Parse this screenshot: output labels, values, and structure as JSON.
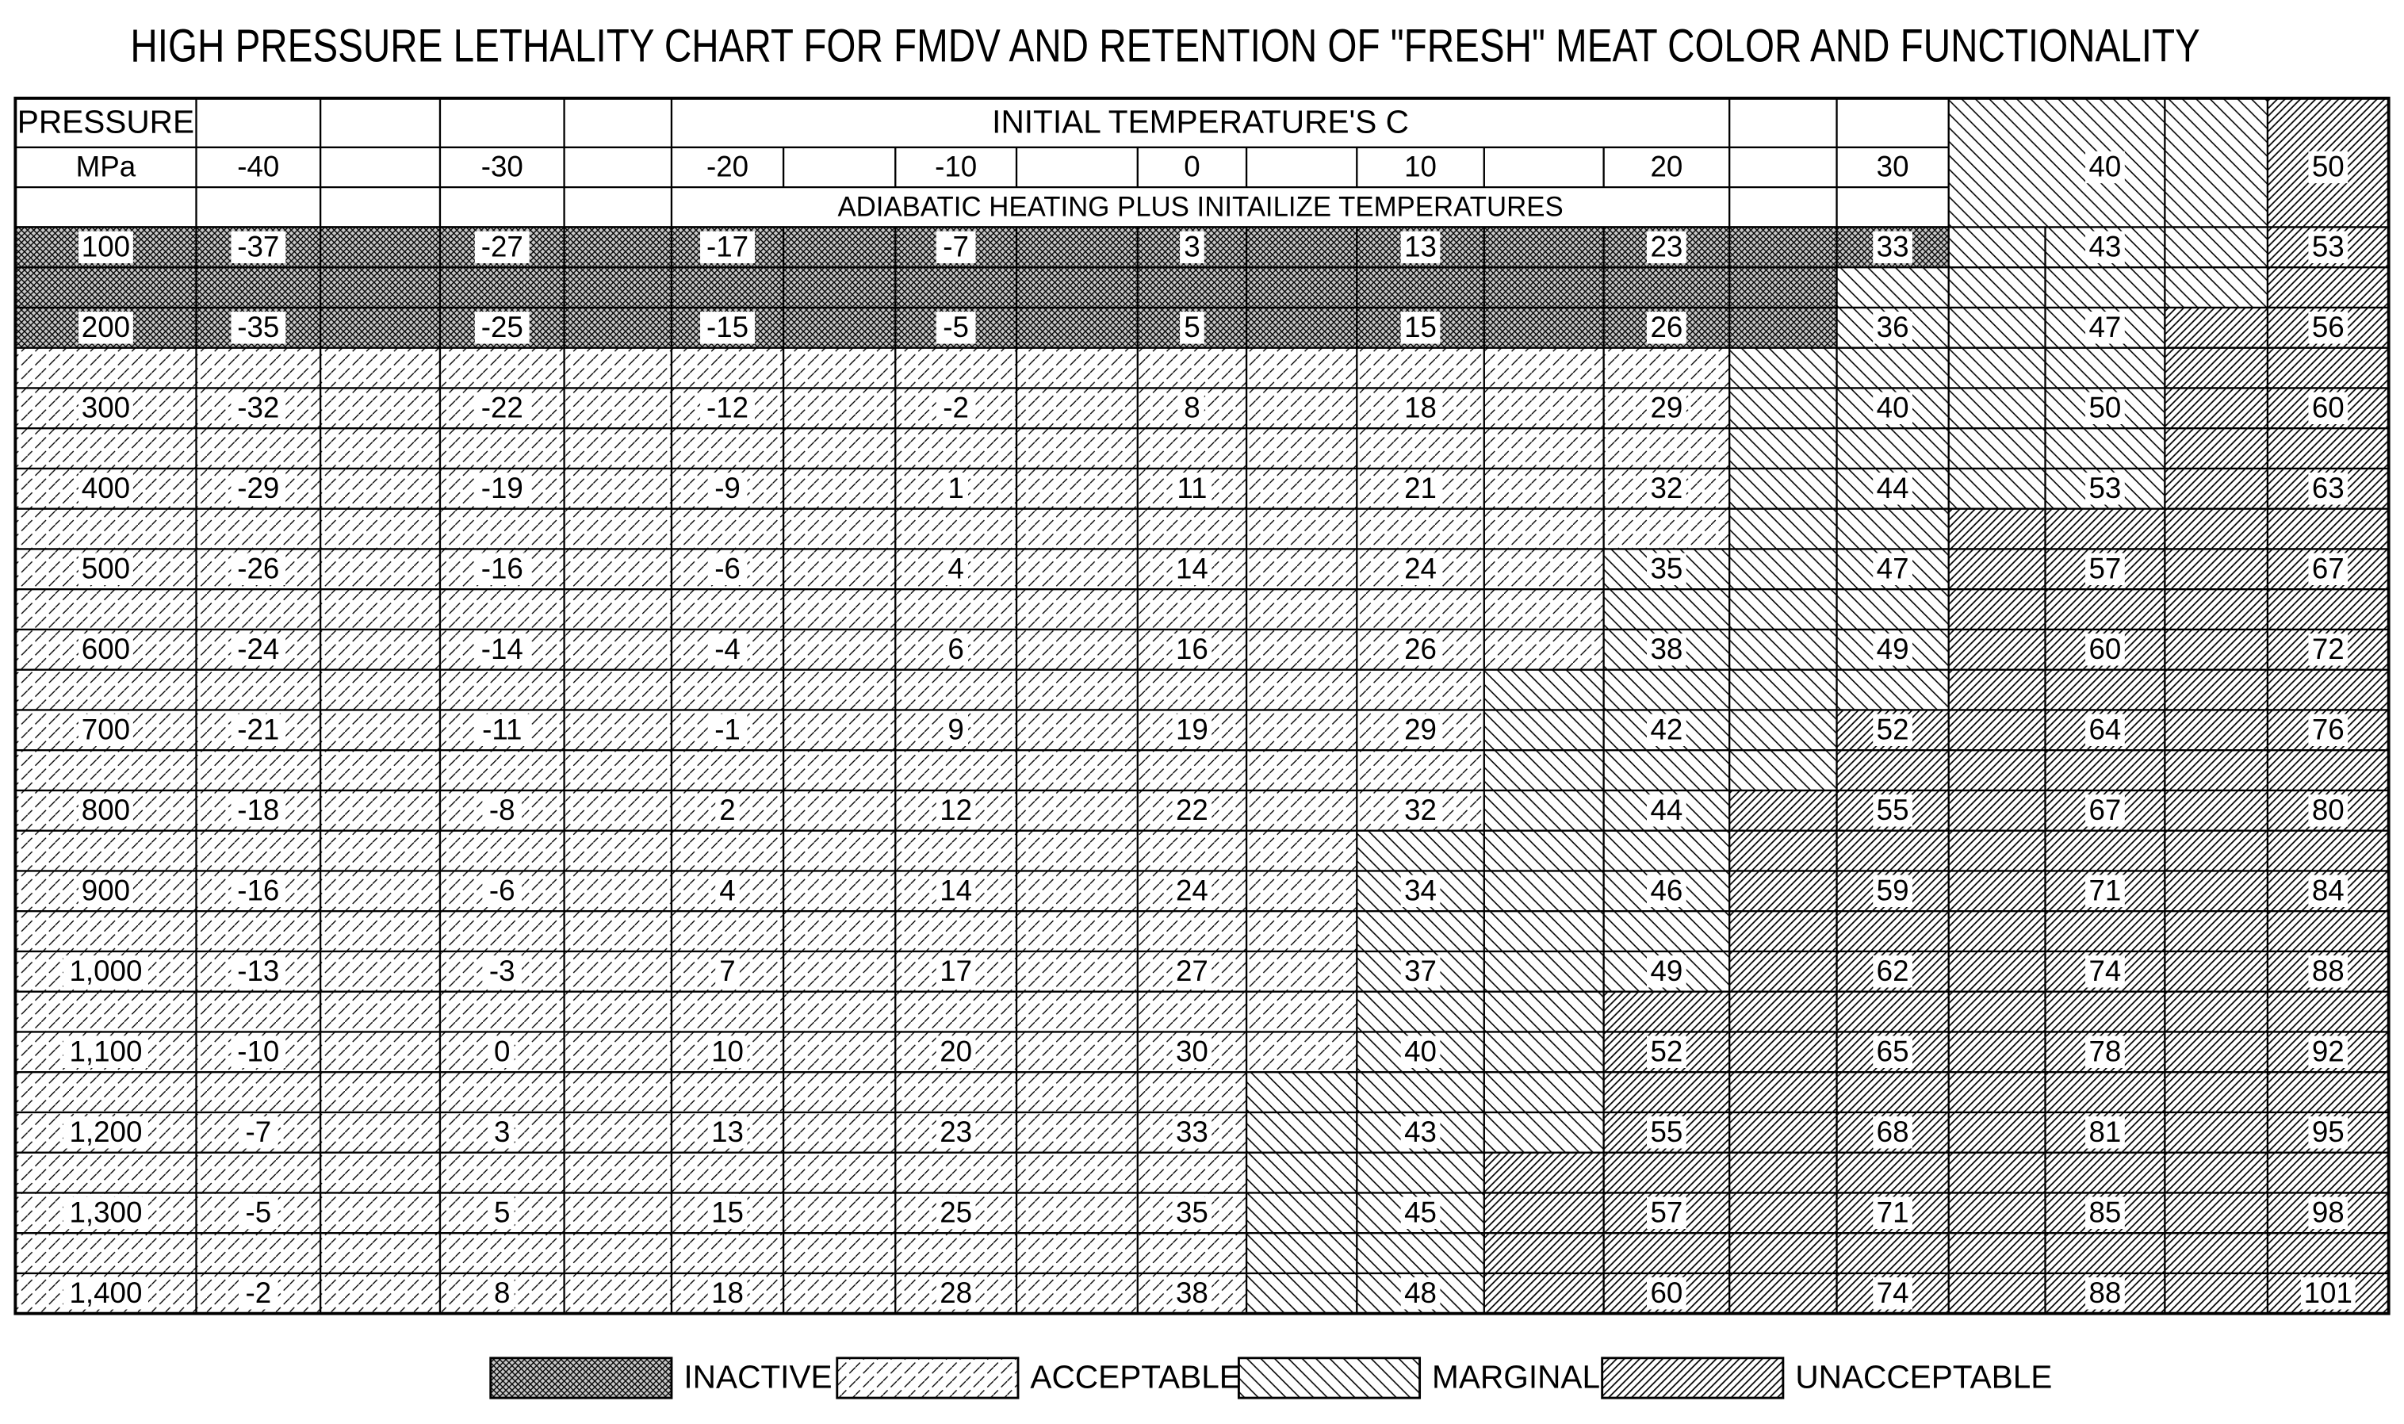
{
  "title": "HIGH PRESSURE LETHALITY CHART FOR FMDV AND RETENTION OF \"FRESH\" MEAT COLOR AND FUNCTIONALITY",
  "header": {
    "pressure_label": "PRESSURE",
    "unit": "MPa",
    "initial_label": "INITIAL TEMPERATURE'S C",
    "temperatures": [
      -40,
      -30,
      -20,
      -10,
      0,
      10,
      20,
      30,
      40,
      50
    ],
    "adiabatic_label": "ADIABATIC HEATING PLUS INITAILIZE TEMPERATURES"
  },
  "rows": [
    {
      "pressure": "100",
      "values": [
        -37,
        -27,
        -17,
        -7,
        3,
        13,
        23,
        33,
        43,
        53
      ]
    },
    {
      "pressure": "200",
      "values": [
        -35,
        -25,
        -15,
        -5,
        5,
        15,
        26,
        36,
        47,
        56
      ]
    },
    {
      "pressure": "300",
      "values": [
        -32,
        -22,
        -12,
        -2,
        8,
        18,
        29,
        40,
        50,
        60
      ]
    },
    {
      "pressure": "400",
      "values": [
        -29,
        -19,
        -9,
        1,
        11,
        21,
        32,
        44,
        53,
        63
      ]
    },
    {
      "pressure": "500",
      "values": [
        -26,
        -16,
        -6,
        4,
        14,
        24,
        35,
        47,
        57,
        67
      ]
    },
    {
      "pressure": "600",
      "values": [
        -24,
        -14,
        -4,
        6,
        16,
        26,
        38,
        49,
        60,
        72
      ]
    },
    {
      "pressure": "700",
      "values": [
        -21,
        -11,
        -1,
        9,
        19,
        29,
        42,
        52,
        64,
        76
      ]
    },
    {
      "pressure": "800",
      "values": [
        -18,
        -8,
        2,
        12,
        22,
        32,
        44,
        55,
        67,
        80
      ]
    },
    {
      "pressure": "900",
      "values": [
        -16,
        -6,
        4,
        14,
        24,
        34,
        46,
        59,
        71,
        84
      ]
    },
    {
      "pressure": "1,000",
      "values": [
        -13,
        -3,
        7,
        17,
        27,
        37,
        49,
        62,
        74,
        88
      ]
    },
    {
      "pressure": "1,100",
      "values": [
        -10,
        0,
        10,
        20,
        30,
        40,
        52,
        65,
        78,
        92
      ]
    },
    {
      "pressure": "1,200",
      "values": [
        -7,
        3,
        13,
        23,
        33,
        43,
        55,
        68,
        81,
        95
      ]
    },
    {
      "pressure": "1,300",
      "values": [
        -5,
        5,
        15,
        25,
        35,
        45,
        57,
        71,
        85,
        98
      ]
    },
    {
      "pressure": "1,400",
      "values": [
        -2,
        8,
        18,
        28,
        38,
        48,
        60,
        74,
        88,
        101
      ]
    }
  ],
  "legend": [
    "INACTIVE",
    "ACCEPTABLE",
    "MARGINAL",
    "UNACCEPTABLE"
  ]
}
